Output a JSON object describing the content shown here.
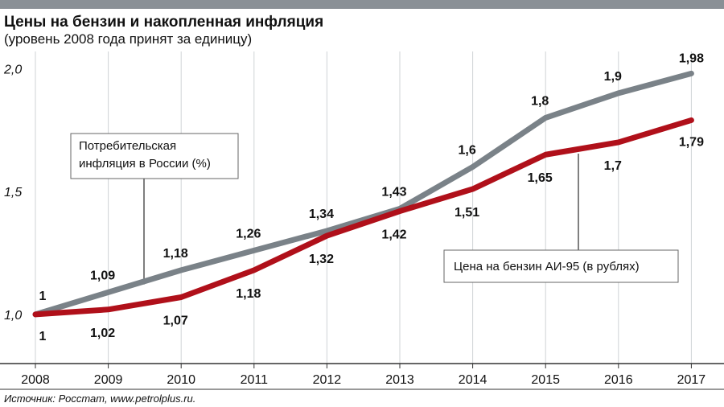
{
  "header": {
    "title": "Цены на бензин и накопленная инфляция",
    "subtitle": "(уровень 2008 года принят за единицу)"
  },
  "source": "Источник: Росстат, www.petrolplus.ru.",
  "colors": {
    "topbar": "#8a9096",
    "inflation": "#7a8288",
    "gasoline": "#b0101a",
    "grid": "#cfd3d6",
    "axis": "#333333"
  },
  "chart_data": {
    "type": "line",
    "x": [
      "2008",
      "2009",
      "2010",
      "2011",
      "2012",
      "2013",
      "2014",
      "2015",
      "2016",
      "2017"
    ],
    "ylim": [
      0.8,
      2.05
    ],
    "yticks": [
      1.0,
      1.5,
      2.0
    ],
    "ytick_labels": [
      "1,0",
      "1,5",
      "2,0"
    ],
    "grid": "vertical",
    "series": [
      {
        "name": "Потребительская инфляция в России (%)",
        "legend_lines": [
          "Потребительская",
          "инфляция в России (%)"
        ],
        "color": "#7a8288",
        "values": [
          1.0,
          1.09,
          1.18,
          1.26,
          1.34,
          1.43,
          1.6,
          1.8,
          1.9,
          1.98
        ],
        "labels": [
          "1",
          "1,09",
          "1,18",
          "1,26",
          "1,34",
          "1,43",
          "1,6",
          "1,8",
          "1,9",
          "1,98"
        ]
      },
      {
        "name": "Цена на бензин АИ-95 (в рублях)",
        "legend_lines": [
          "Цена на бензин АИ-95 (в рублях)"
        ],
        "color": "#b0101a",
        "values": [
          1.0,
          1.02,
          1.07,
          1.18,
          1.32,
          1.42,
          1.51,
          1.65,
          1.7,
          1.79
        ],
        "labels": [
          "1",
          "1,02",
          "1,07",
          "1,18",
          "1,32",
          "1,42",
          "1,51",
          "1,65",
          "1,7",
          "1,79"
        ]
      }
    ]
  }
}
